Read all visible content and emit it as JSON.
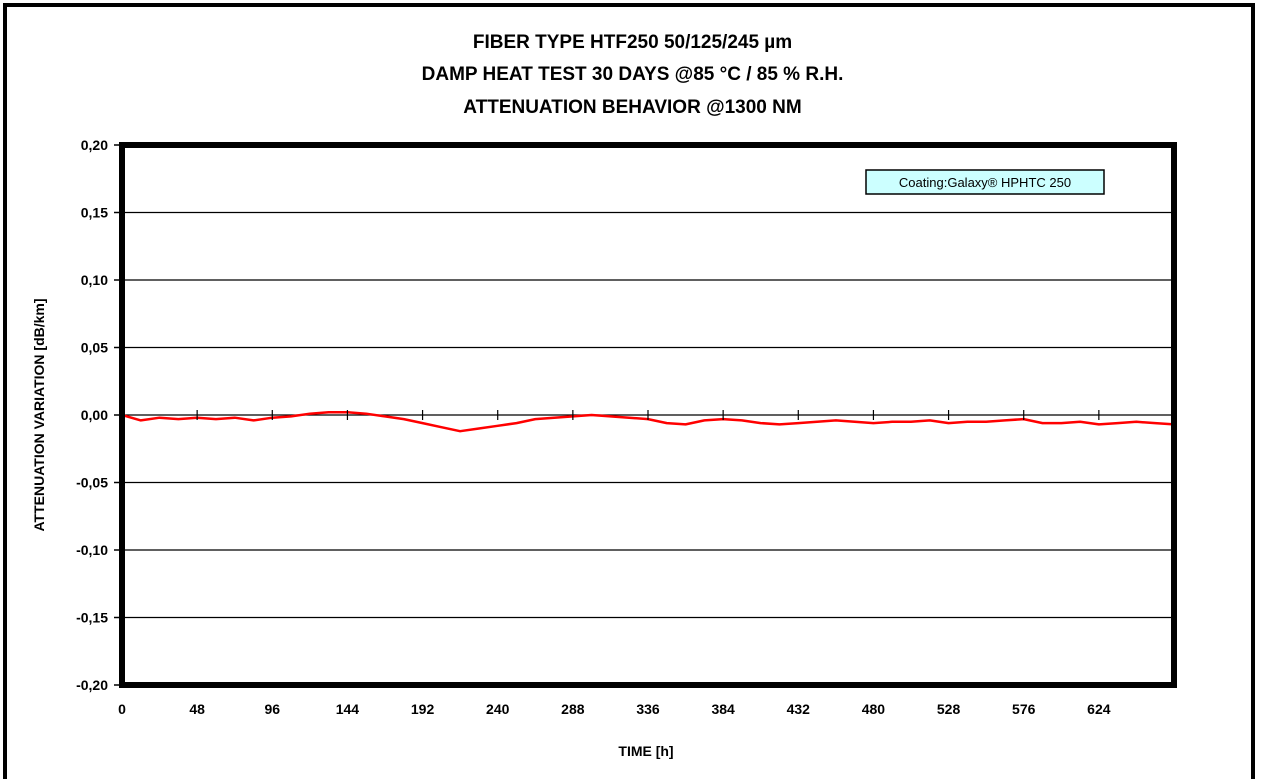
{
  "chart_data": {
    "type": "line",
    "title": "FIBER TYPE HTF250  50/125/245 µm",
    "subtitle": [
      "DAMP HEAT TEST 30 DAYS @85 °C / 85 % R.H.",
      "ATTENUATION BEHAVIOR @1300 NM"
    ],
    "xlabel": "TIME [h]",
    "ylabel": "ATTENUATION VARIATION [dB/km]",
    "xlim": [
      0,
      672
    ],
    "ylim": [
      -0.2,
      0.2
    ],
    "x_ticks": [
      0,
      48,
      96,
      144,
      192,
      240,
      288,
      336,
      384,
      432,
      480,
      528,
      576,
      624
    ],
    "x_tick_labels": [
      "0",
      "48",
      "96",
      "144",
      "192",
      "240",
      "288",
      "336",
      "384",
      "432",
      "480",
      "528",
      "576",
      "624"
    ],
    "y_ticks": [
      0.2,
      0.15,
      0.1,
      0.05,
      0.0,
      -0.05,
      -0.1,
      -0.15,
      -0.2
    ],
    "y_tick_labels": [
      "0,20",
      "0,15",
      "0,10",
      "0,05",
      "0,00",
      "-0,05",
      "-0,10",
      "-0,15",
      "-0,20"
    ],
    "grid": "horizontal",
    "annotation": "Coating:Galaxy® HPHTC 250",
    "line_color": "#ff0000",
    "series": [
      {
        "x": [
          0,
          12,
          24,
          36,
          48,
          60,
          72,
          84,
          96,
          108,
          120,
          132,
          144,
          156,
          168,
          180,
          192,
          204,
          216,
          228,
          240,
          252,
          264,
          276,
          288,
          300,
          312,
          324,
          336,
          348,
          360,
          372,
          384,
          396,
          408,
          420,
          432,
          444,
          456,
          468,
          480,
          492,
          504,
          516,
          528,
          540,
          552,
          564,
          576,
          588,
          600,
          612,
          624,
          636,
          648,
          660,
          672
        ],
        "values": [
          0.0,
          -0.004,
          -0.002,
          -0.003,
          -0.002,
          -0.003,
          -0.002,
          -0.004,
          -0.002,
          -0.001,
          0.001,
          0.002,
          0.002,
          0.001,
          -0.001,
          -0.003,
          -0.006,
          -0.009,
          -0.012,
          -0.01,
          -0.008,
          -0.006,
          -0.003,
          -0.002,
          -0.001,
          0.0,
          -0.001,
          -0.002,
          -0.003,
          -0.006,
          -0.007,
          -0.004,
          -0.003,
          -0.004,
          -0.006,
          -0.007,
          -0.006,
          -0.005,
          -0.004,
          -0.005,
          -0.006,
          -0.005,
          -0.005,
          -0.004,
          -0.006,
          -0.005,
          -0.005,
          -0.004,
          -0.003,
          -0.006,
          -0.006,
          -0.005,
          -0.007,
          -0.006,
          -0.005,
          -0.006,
          -0.007
        ]
      }
    ]
  }
}
